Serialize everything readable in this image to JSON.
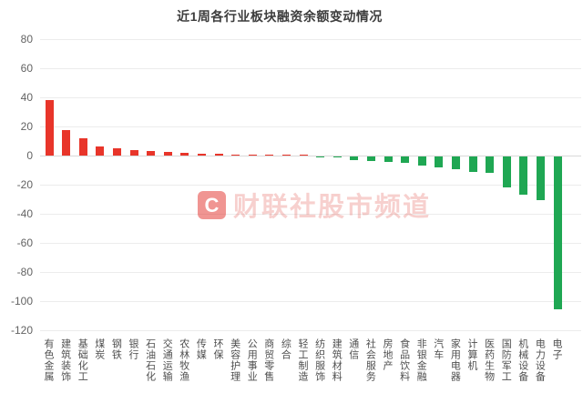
{
  "title": "近1周各行业板块融资余额变动情况",
  "watermark": {
    "logo_letter": "C",
    "text": "财联社股市频道"
  },
  "chart_data": {
    "type": "bar",
    "title": "近1周各行业板块融资余额变动情况",
    "xlabel": "",
    "ylabel": "",
    "categories": [
      "有色金属",
      "建筑装饰",
      "基础化工",
      "煤炭",
      "钢铁",
      "银行",
      "石油石化",
      "交通运输",
      "农林牧渔",
      "传媒",
      "环保",
      "美容护理",
      "公用事业",
      "商贸零售",
      "综合",
      "轻工制造",
      "纺织服饰",
      "建筑材料",
      "通信",
      "社会服务",
      "房地产",
      "食品饮料",
      "非银金融",
      "汽车",
      "家用电器",
      "计算机",
      "医药生物",
      "国防军工",
      "机械设备",
      "电力设备",
      "电子"
    ],
    "values": [
      38,
      17.5,
      12,
      6.5,
      5,
      4,
      3,
      2.5,
      2,
      1.2,
      1,
      0.8,
      0.7,
      0.6,
      0.5,
      0.4,
      -0.4,
      -0.6,
      -2.5,
      -3,
      -3.5,
      -4.5,
      -6.5,
      -7.5,
      -8.5,
      -10.5,
      -11,
      -21.5,
      -26,
      -30,
      -105
    ],
    "yticks": [
      80,
      60,
      40,
      20,
      0,
      -20,
      -40,
      -60,
      -80,
      -100,
      -120
    ],
    "ylim": [
      -120,
      80
    ],
    "grid": true,
    "legend_position": "none",
    "bar_color_positive": "#e8352a",
    "bar_color_negative": "#1fa753"
  }
}
